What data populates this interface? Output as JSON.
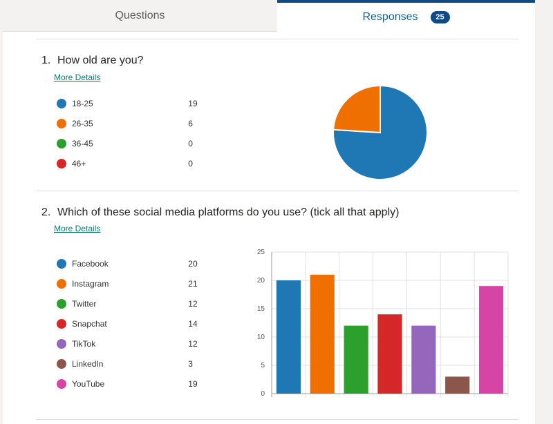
{
  "tabs": {
    "questions_label": "Questions",
    "responses_label": "Responses",
    "responses_count": "25"
  },
  "colors": {
    "accent": "#0e4a84",
    "link": "#0b7a75"
  },
  "questions": [
    {
      "number": "1.",
      "title": "How old are you?",
      "more_details": "More Details",
      "options": [
        {
          "label": "18-25",
          "count": "19",
          "color": "#1f77b4"
        },
        {
          "label": "26-35",
          "count": "6",
          "color": "#ef7000"
        },
        {
          "label": "36-45",
          "count": "0",
          "color": "#2ca02c"
        },
        {
          "label": "46+",
          "count": "0",
          "color": "#d62728"
        }
      ]
    },
    {
      "number": "2.",
      "title": "Which of these social media platforms do you use? (tick all that apply)",
      "more_details": "More Details",
      "options": [
        {
          "label": "Facebook",
          "count": "20",
          "color": "#1f77b4"
        },
        {
          "label": "Instagram",
          "count": "21",
          "color": "#ef7000"
        },
        {
          "label": "Twitter",
          "count": "12",
          "color": "#2ca02c"
        },
        {
          "label": "Snapchat",
          "count": "14",
          "color": "#d62728"
        },
        {
          "label": "TikTok",
          "count": "12",
          "color": "#9467bd"
        },
        {
          "label": "LinkedIn",
          "count": "3",
          "color": "#8c564b"
        },
        {
          "label": "YouTube",
          "count": "19",
          "color": "#d645a6"
        }
      ]
    }
  ],
  "chart_data": [
    {
      "type": "pie",
      "categories": [
        "18-25",
        "26-35",
        "36-45",
        "46+"
      ],
      "values": [
        19,
        6,
        0,
        0
      ],
      "colors": [
        "#1f77b4",
        "#ef7000",
        "#2ca02c",
        "#d62728"
      ]
    },
    {
      "type": "bar",
      "categories": [
        "Facebook",
        "Instagram",
        "Twitter",
        "Snapchat",
        "TikTok",
        "LinkedIn",
        "YouTube"
      ],
      "values": [
        20,
        21,
        12,
        14,
        12,
        3,
        19
      ],
      "colors": [
        "#1f77b4",
        "#ef7000",
        "#2ca02c",
        "#d62728",
        "#9467bd",
        "#8c564b",
        "#d645a6"
      ],
      "ylim": [
        0,
        25
      ],
      "yticks": [
        "0",
        "5",
        "10",
        "15",
        "20",
        "25"
      ],
      "grid": true
    }
  ]
}
